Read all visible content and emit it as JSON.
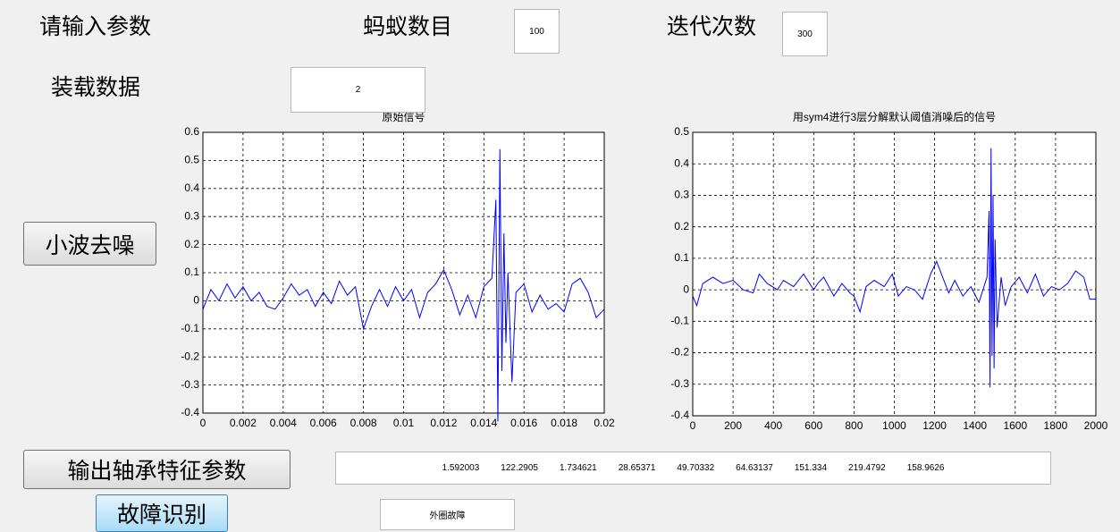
{
  "params": {
    "heading": "请输入参数",
    "ants_label": "蚂蚁数目",
    "ants_value": "100",
    "iter_label": "迭代次数",
    "iter_value": "300",
    "load_label": "装载数据",
    "load_value": "2"
  },
  "buttons": {
    "denoise": "小波去噪",
    "features": "输出轴承特征参数",
    "diagnose": "故障识别"
  },
  "features": [
    1.592003,
    122.2905,
    1.734621,
    28.65371,
    49.70332,
    64.63137,
    151.334,
    219.4792,
    158.9626
  ],
  "result": "外圈故障",
  "chart_data": [
    {
      "type": "line",
      "title": "原始信号",
      "color": "#0000ff",
      "grid": true,
      "xlim": [
        0,
        0.02
      ],
      "xticks": [
        0,
        0.002,
        0.004,
        0.006,
        0.008,
        0.01,
        0.012,
        0.014,
        0.016,
        0.018,
        0.02
      ],
      "ylim": [
        -0.4,
        0.6
      ],
      "yticks": [
        -0.4,
        -0.3,
        -0.2,
        -0.1,
        0,
        0.1,
        0.2,
        0.3,
        0.4,
        0.5,
        0.6
      ],
      "x": [
        0,
        0.0004,
        0.0008,
        0.0012,
        0.0016,
        0.002,
        0.0024,
        0.0028,
        0.0032,
        0.0036,
        0.004,
        0.0044,
        0.0048,
        0.0052,
        0.0056,
        0.006,
        0.0064,
        0.0068,
        0.0072,
        0.0076,
        0.008,
        0.0084,
        0.0088,
        0.0092,
        0.0096,
        0.01,
        0.0104,
        0.0108,
        0.0112,
        0.0116,
        0.012,
        0.0124,
        0.0128,
        0.0132,
        0.0136,
        0.014,
        0.0144,
        0.0146,
        0.0147,
        0.0148,
        0.0149,
        0.015,
        0.0151,
        0.0152,
        0.0154,
        0.0156,
        0.016,
        0.0164,
        0.0168,
        0.0172,
        0.0176,
        0.018,
        0.0184,
        0.0188,
        0.0192,
        0.0196,
        0.02
      ],
      "values": [
        -0.03,
        0.04,
        0.0,
        0.06,
        0.01,
        0.05,
        0.0,
        0.03,
        -0.02,
        -0.03,
        0.01,
        0.06,
        0.02,
        0.04,
        -0.02,
        0.03,
        -0.01,
        0.07,
        0.02,
        0.05,
        -0.1,
        -0.02,
        0.04,
        -0.02,
        0.05,
        0.0,
        0.04,
        -0.06,
        0.03,
        0.06,
        0.11,
        0.04,
        -0.05,
        0.02,
        -0.06,
        0.05,
        0.08,
        0.36,
        -0.43,
        0.54,
        -0.25,
        0.24,
        -0.15,
        0.1,
        -0.29,
        0.03,
        0.06,
        -0.04,
        0.02,
        -0.03,
        -0.01,
        -0.04,
        0.06,
        0.08,
        0.03,
        -0.06,
        -0.03
      ]
    },
    {
      "type": "line",
      "title": "用sym4进行3层分解默认阈值消噪后的信号",
      "color": "#0000ff",
      "grid": true,
      "xlim": [
        0,
        2000
      ],
      "xticks": [
        0,
        200,
        400,
        600,
        800,
        1000,
        1200,
        1400,
        1600,
        1800,
        2000
      ],
      "ylim": [
        -0.4,
        0.5
      ],
      "yticks": [
        -0.4,
        -0.3,
        -0.2,
        -0.1,
        0,
        0.1,
        0.2,
        0.3,
        0.4,
        0.5
      ],
      "x": [
        0,
        20,
        50,
        100,
        150,
        200,
        250,
        300,
        330,
        370,
        420,
        450,
        500,
        550,
        600,
        620,
        650,
        700,
        740,
        780,
        800,
        830,
        860,
        900,
        950,
        990,
        1020,
        1060,
        1100,
        1140,
        1180,
        1210,
        1240,
        1270,
        1300,
        1340,
        1380,
        1420,
        1460,
        1470,
        1475,
        1480,
        1485,
        1490,
        1495,
        1500,
        1510,
        1530,
        1550,
        1580,
        1620,
        1660,
        1700,
        1740,
        1780,
        1820,
        1860,
        1900,
        1940,
        1970,
        2000
      ],
      "values": [
        -0.02,
        -0.05,
        0.02,
        0.04,
        0.02,
        0.03,
        0.0,
        -0.01,
        0.05,
        0.02,
        0.0,
        0.03,
        0.01,
        0.05,
        0.0,
        0.02,
        0.04,
        -0.02,
        0.02,
        -0.01,
        -0.02,
        -0.07,
        0.01,
        0.03,
        0.01,
        0.05,
        -0.02,
        0.01,
        0.0,
        -0.03,
        0.05,
        0.09,
        0.04,
        -0.01,
        0.03,
        -0.02,
        0.01,
        -0.04,
        0.04,
        0.25,
        -0.31,
        0.45,
        -0.21,
        0.3,
        -0.25,
        0.16,
        -0.12,
        0.04,
        -0.05,
        0.01,
        0.04,
        -0.01,
        0.05,
        -0.02,
        0.01,
        0.0,
        0.02,
        0.06,
        0.04,
        -0.03,
        -0.03
      ]
    }
  ]
}
